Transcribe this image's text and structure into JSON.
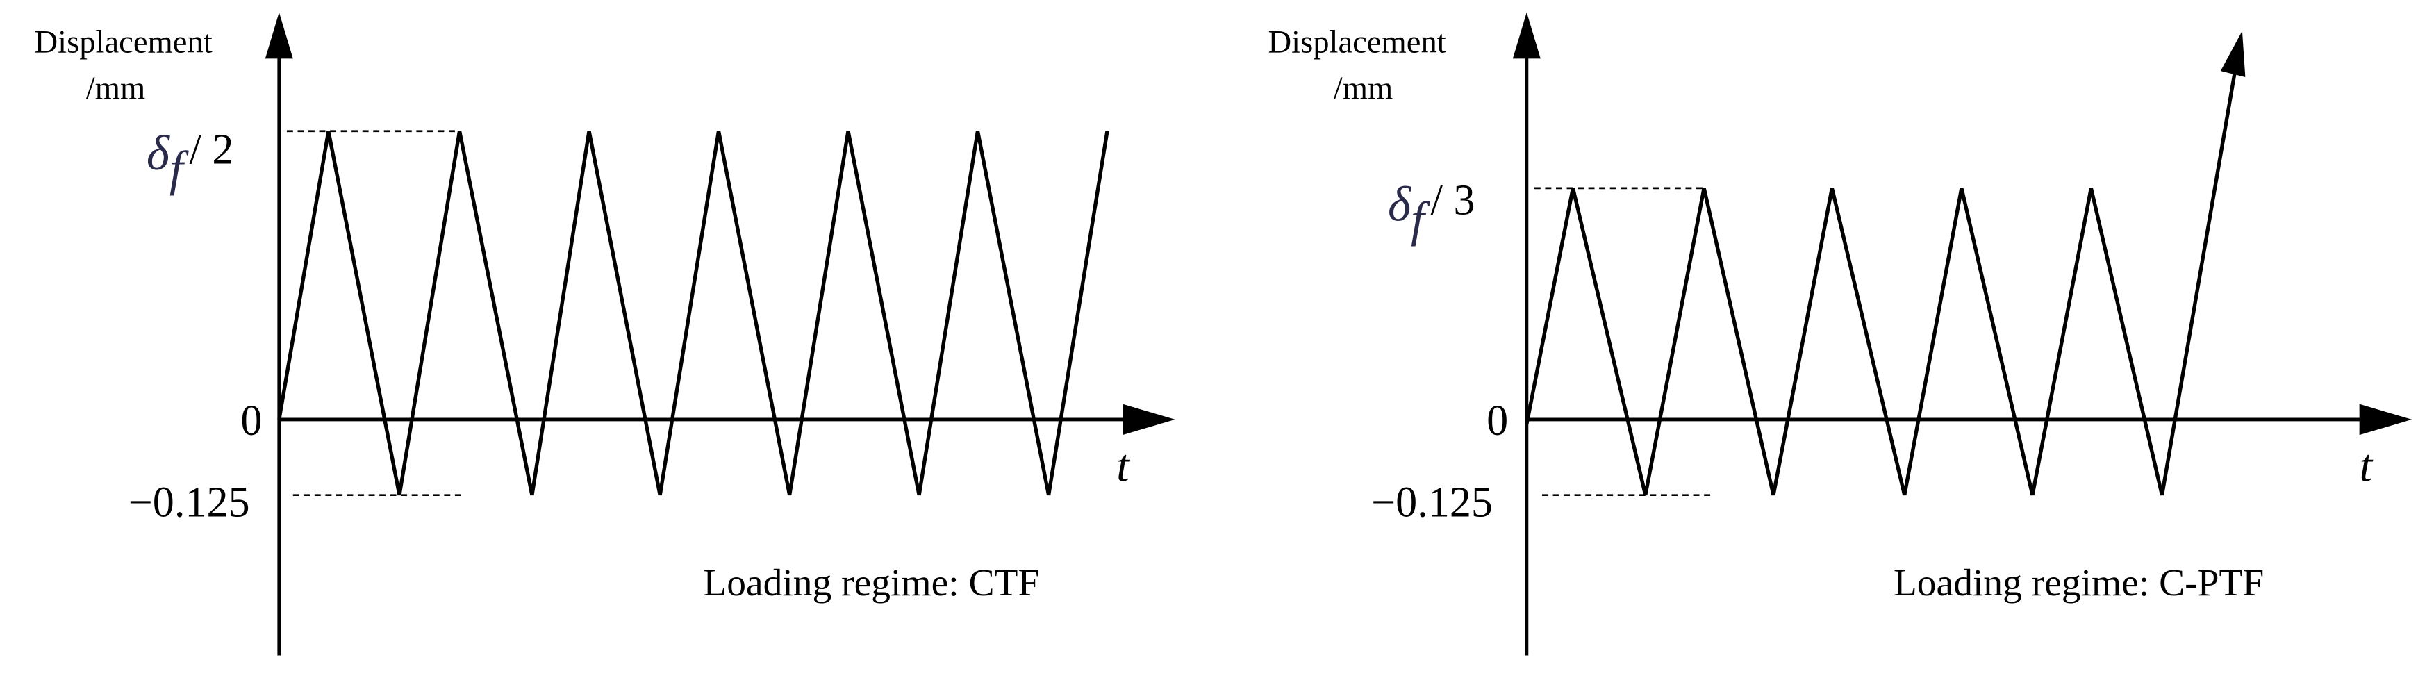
{
  "panels": [
    {
      "y_label_line1": "Displacement",
      "y_label_line2": "/mm",
      "peak_label": {
        "symbol": "δ",
        "subscript": "f",
        "suffix": "/ 2"
      },
      "zero_label": "0",
      "trough_label": "−0.125",
      "x_label": "t",
      "caption": "Loading regime: CTF"
    },
    {
      "y_label_line1": "Displacement",
      "y_label_line2": "/mm",
      "peak_label": {
        "symbol": "δ",
        "subscript": "f",
        "suffix": "/ 3"
      },
      "zero_label": "0",
      "trough_label": "−0.125",
      "x_label": "t",
      "caption": "Loading regime: C-PTF"
    }
  ]
}
